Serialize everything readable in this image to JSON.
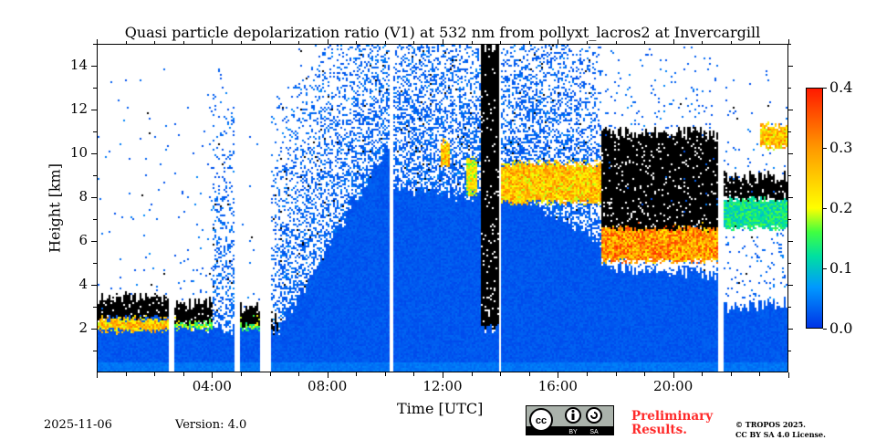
{
  "chart_data": {
    "type": "heatmap",
    "title": "Quasi particle depolarization ratio (V1) at 532 nm from pollyxt_lacros2 at Invercargill",
    "xlabel": "Time [UTC]",
    "ylabel": "Height [km]",
    "xlim_hours": [
      0,
      24
    ],
    "ylim_km": [
      0,
      15
    ],
    "x_ticks": [
      {
        "v": 4,
        "label": "04:00"
      },
      {
        "v": 8,
        "label": "08:00"
      },
      {
        "v": 12,
        "label": "12:00"
      },
      {
        "v": 16,
        "label": "16:00"
      },
      {
        "v": 20,
        "label": "20:00"
      }
    ],
    "y_ticks": [
      {
        "v": 2,
        "label": "2"
      },
      {
        "v": 4,
        "label": "4"
      },
      {
        "v": 6,
        "label": "6"
      },
      {
        "v": 8,
        "label": "8"
      },
      {
        "v": 10,
        "label": "10"
      },
      {
        "v": 12,
        "label": "12"
      },
      {
        "v": 14,
        "label": "14"
      }
    ],
    "colorbar": {
      "range": [
        0,
        0.4
      ],
      "ticks": [
        {
          "v": 0,
          "label": "0.0"
        },
        {
          "v": 0.1,
          "label": "0.1"
        },
        {
          "v": 0.2,
          "label": "0.2"
        },
        {
          "v": 0.3,
          "label": "0.3"
        },
        {
          "v": 0.4,
          "label": "0.4"
        }
      ],
      "colormap": [
        "#0033e6",
        "#0099ff",
        "#00e0a0",
        "#40ff40",
        "#ffff00",
        "#ff9900",
        "#ff1a00"
      ]
    },
    "segments": [
      {
        "t": [
          0,
          2.5
        ],
        "dense": [
          2.5,
          2.5
        ],
        "noise": 0.03,
        "black": [
          2.5,
          3.4
        ],
        "clouds": [
          [
            1.9,
            2.5,
            0.3
          ]
        ]
      },
      {
        "t": [
          2.67,
          4.0
        ],
        "dense": [
          2.3,
          2.0
        ],
        "noise": 0.04,
        "black": [
          2.3,
          3.2
        ],
        "clouds": [
          [
            2.0,
            2.4,
            0.2
          ]
        ]
      },
      {
        "t": [
          4.0,
          4.73
        ],
        "dense": [
          2.0,
          2.0
        ],
        "noise": 0.45,
        "clouds": []
      },
      {
        "t": [
          4.95,
          5.65
        ],
        "dense": [
          2.2,
          2.2
        ],
        "noise": 0.02,
        "black": [
          2.2,
          3.0
        ],
        "clouds": [
          [
            2.0,
            2.6,
            0.2
          ]
        ]
      },
      {
        "t": [
          6.03,
          6.3
        ],
        "dense": [
          2.0,
          2.0
        ],
        "noise": 0.3,
        "black": [
          1.9,
          2.4
        ],
        "clouds": []
      },
      {
        "t": [
          6.3,
          10.13
        ],
        "dense": [
          2.0,
          10.5
        ],
        "noise": 0.5,
        "clouds": []
      },
      {
        "t": [
          10.29,
          13.3
        ],
        "dense": [
          8.5,
          8.0
        ],
        "noise": 0.6,
        "clouds": [
          [
            9.5,
            10.6,
            0.3,
            11.9,
            12.2
          ],
          [
            8.2,
            9.8,
            0.25,
            12.8,
            13.2
          ]
        ]
      },
      {
        "t": [
          13.3,
          13.95
        ],
        "dense": [
          2.1,
          2.1
        ],
        "noise": 0,
        "black": [
          2.1,
          15
        ],
        "clouds": []
      },
      {
        "t": [
          14.0,
          17.5
        ],
        "dense": [
          8.5,
          6.0
        ],
        "noise": 0.6,
        "clouds": [
          [
            7.8,
            9.6,
            0.3
          ]
        ]
      },
      {
        "t": [
          17.5,
          21.56
        ],
        "dense": [
          4.8,
          4.5
        ],
        "noise": 0.15,
        "black": [
          6.6,
          11
        ],
        "clouds": [
          [
            5.1,
            6.8,
            0.35
          ]
        ]
      },
      {
        "t": [
          21.75,
          24
        ],
        "dense": [
          3.0,
          3.2
        ],
        "noise": 0.08,
        "black": [
          8.0,
          9.0
        ],
        "clouds": [
          [
            6.6,
            8.0,
            0.15
          ],
          [
            10.3,
            11.3,
            0.3,
            23.0,
            24
          ]
        ]
      }
    ]
  },
  "footer": {
    "date": "2025-11-06",
    "version": "Version: 4.0",
    "preliminary_line1": "Preliminary",
    "preliminary_line2": "Results.",
    "copyright": "© TROPOS 2025.",
    "license": "CC BY SA 4.0 License.",
    "cc_logo": "cc BY SA"
  }
}
